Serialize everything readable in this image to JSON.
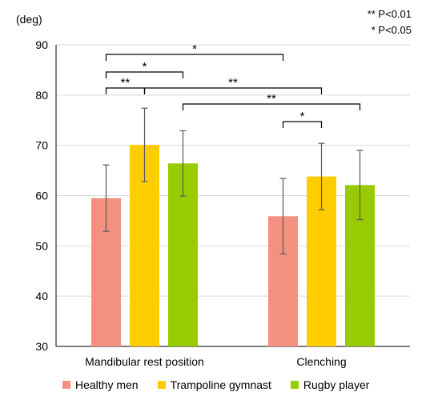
{
  "chart_data": {
    "type": "bar",
    "unit_label": "(deg)",
    "categories": [
      "Mandibular rest position",
      "Clenching"
    ],
    "series": [
      {
        "name": "Healthy men",
        "color": "#f4907f",
        "values": [
          59.5,
          55.9
        ],
        "error": [
          6.6,
          7.5
        ]
      },
      {
        "name": "Trampoline gymnast",
        "color": "#ffcc00",
        "values": [
          70.1,
          63.8
        ],
        "error": [
          7.3,
          6.6
        ]
      },
      {
        "name": "Rugby player",
        "color": "#99cc00",
        "values": [
          66.4,
          62.1
        ],
        "error": [
          6.5,
          6.9
        ]
      }
    ],
    "ylim": [
      30,
      90
    ],
    "yticks": [
      30,
      40,
      50,
      60,
      70,
      80,
      90
    ],
    "significance": [
      {
        "from": [
          0,
          0
        ],
        "to": [
          1,
          0
        ],
        "label": "*"
      },
      {
        "from": [
          0,
          0
        ],
        "to": [
          0,
          2
        ],
        "label": "*"
      },
      {
        "from": [
          0,
          0
        ],
        "to": [
          0,
          1
        ],
        "label": "**"
      },
      {
        "from": [
          0,
          1
        ],
        "to": [
          1,
          1
        ],
        "label": "**"
      },
      {
        "from": [
          0,
          2
        ],
        "to": [
          1,
          2
        ],
        "label": "**"
      },
      {
        "from": [
          1,
          0
        ],
        "to": [
          1,
          1
        ],
        "label": "*"
      }
    ],
    "notes": [
      "** P<0.01",
      "* P<0.05"
    ],
    "legend_position": "bottom"
  }
}
